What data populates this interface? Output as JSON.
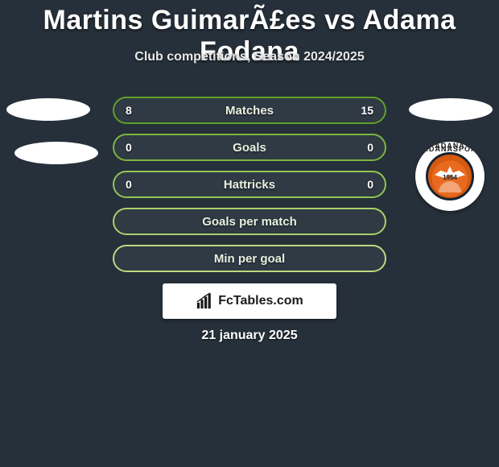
{
  "background_color": "#26303a",
  "title": {
    "text": "Martins GuimarÃ£es vs Adama Fodana",
    "color": "#ffffff",
    "fontsize": 34,
    "fontweight": 900
  },
  "subtitle": {
    "text": "Club competitions, Season 2024/2025",
    "color": "#e8e8e8",
    "fontsize": 16,
    "fontweight": 700
  },
  "left_player_placeholder": {
    "color": "#ffffff"
  },
  "left_club_placeholder": {
    "color": "#ffffff"
  },
  "right_player_placeholder": {
    "color": "#ffffff"
  },
  "right_club_badge": {
    "top_text": "ADANASPOR",
    "bottom_text": "ADANA",
    "year": "1954",
    "ring_bg": "#ffffff",
    "core_bg": "#e96a1f",
    "outline": "#172432"
  },
  "stats": {
    "pill_bg": "#2f3a44",
    "label_color": "#e8f0e0",
    "value_color": "#ffffff",
    "label_fontsize": 15,
    "value_fontsize": 14,
    "rows": [
      {
        "label": "Matches",
        "left": "8",
        "right": "15",
        "border": "#5fa028"
      },
      {
        "label": "Goals",
        "left": "0",
        "right": "0",
        "border": "#7db53f"
      },
      {
        "label": "Hattricks",
        "left": "0",
        "right": "0",
        "border": "#94c455"
      },
      {
        "label": "Goals per match",
        "left": "",
        "right": "",
        "border": "#a9d06a"
      },
      {
        "label": "Min per goal",
        "left": "",
        "right": "",
        "border": "#bcd97e"
      }
    ]
  },
  "watermark": {
    "text": "FcTables.com",
    "bg": "#ffffff",
    "text_color": "#1a1a1a",
    "icon_color": "#1a1a1a"
  },
  "date": {
    "text": "21 january 2025",
    "color": "#ffffff",
    "fontsize": 16,
    "fontweight": 800
  }
}
